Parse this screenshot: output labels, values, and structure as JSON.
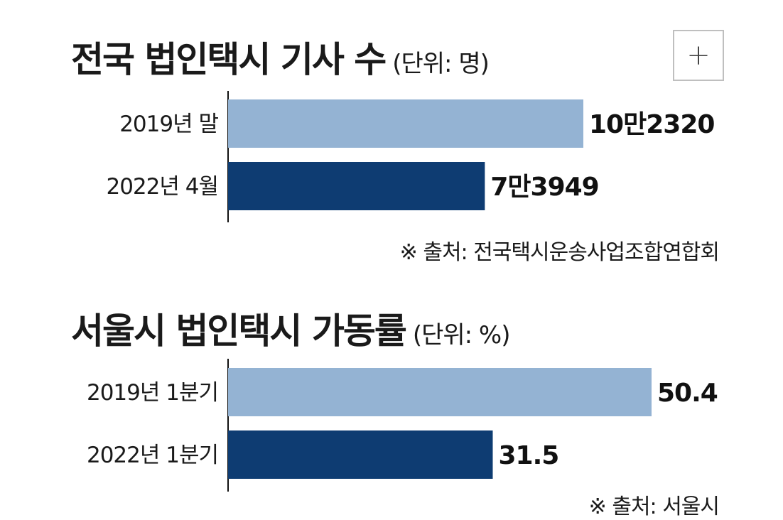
{
  "expand_button": {
    "icon": "plus-icon",
    "symbol": "+"
  },
  "chart_data": [
    {
      "type": "bar",
      "orientation": "horizontal",
      "title": "전국 법인택시 기사 수",
      "unit_label": "(단위: 명)",
      "categories": [
        "2019년 말",
        "2022년 4월"
      ],
      "values": [
        102320,
        73949
      ],
      "value_labels": [
        "10만2320",
        "7만3949"
      ],
      "colors": [
        "#94b3d3",
        "#0e3c72"
      ],
      "source": "※ 출처: 전국택시운송사업조합연합회"
    },
    {
      "type": "bar",
      "orientation": "horizontal",
      "title": "서울시 법인택시 가동률",
      "unit_label": "(단위: %)",
      "categories": [
        "2019년 1분기",
        "2022년 1분기"
      ],
      "values": [
        50.4,
        31.5
      ],
      "value_labels": [
        "50.4",
        "31.5"
      ],
      "colors": [
        "#94b3d3",
        "#0e3c72"
      ],
      "source": "※ 출처: 서울시"
    }
  ]
}
